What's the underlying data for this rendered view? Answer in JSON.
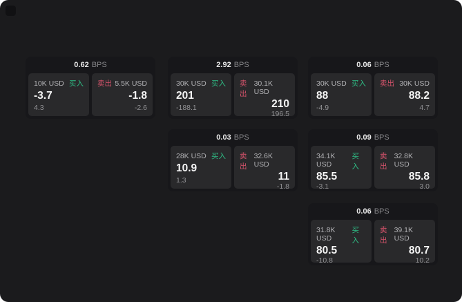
{
  "labels": {
    "bps": "BPS",
    "buy": "买入",
    "sell": "卖出"
  },
  "colors": {
    "buy": "#2ebd85",
    "sell": "#d6536b",
    "page_background": "#1b1b1d",
    "panel_background": "#29292b"
  },
  "cards": [
    {
      "bps": "0.62",
      "buy": {
        "amount": "10K USD",
        "value": "-3.7",
        "sub": "4.3"
      },
      "sell": {
        "amount": "5.5K USD",
        "value": "-1.8",
        "sub": "-2.6"
      }
    },
    {
      "bps": "2.92",
      "buy": {
        "amount": "30K USD",
        "value": "201",
        "sub": "-188.1"
      },
      "sell": {
        "amount": "30.1K USD",
        "value": "210",
        "sub": "196.5"
      }
    },
    {
      "bps": "0.06",
      "buy": {
        "amount": "30K USD",
        "value": "88",
        "sub": "-4.9"
      },
      "sell": {
        "amount": "30K USD",
        "value": "88.2",
        "sub": "4.7"
      }
    },
    {
      "bps": "0.03",
      "buy": {
        "amount": "28K USD",
        "value": "10.9",
        "sub": "1.3"
      },
      "sell": {
        "amount": "32.6K USD",
        "value": "11",
        "sub": "-1.8"
      }
    },
    {
      "bps": "0.09",
      "buy": {
        "amount": "34.1K USD",
        "value": "85.5",
        "sub": "-3.1"
      },
      "sell": {
        "amount": "32.8K USD",
        "value": "85.8",
        "sub": "3.0"
      }
    },
    {
      "bps": "0.06",
      "buy": {
        "amount": "31.8K USD",
        "value": "80.5",
        "sub": "-10.8"
      },
      "sell": {
        "amount": "39.1K USD",
        "value": "80.7",
        "sub": "10.2"
      }
    }
  ]
}
